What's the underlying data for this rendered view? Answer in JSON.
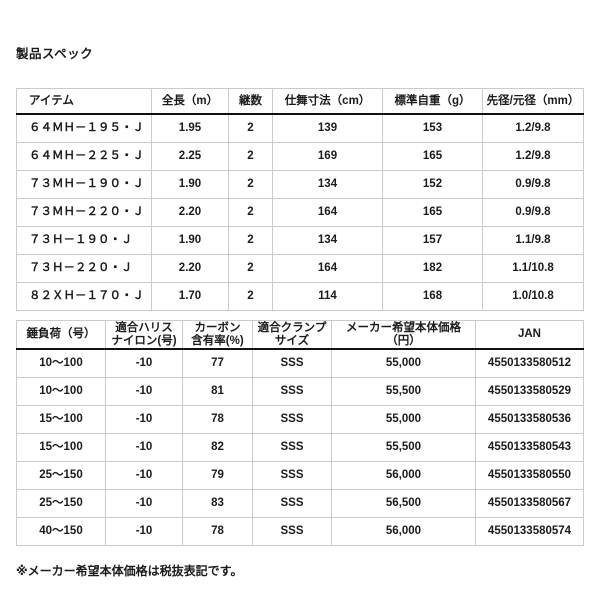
{
  "page": {
    "title": "製品スペック",
    "footnote": "※メーカー希望本体価格は税抜表記です。"
  },
  "colors": {
    "background": "#ffffff",
    "text": "#1b1b1b",
    "cell_border": "#cbcbcb",
    "header_rule": "#111111"
  },
  "spec_table": {
    "columns": [
      "アイテム",
      "全長（m）",
      "継数",
      "仕舞寸法（cm）",
      "標準自重（g）",
      "先径/元径（mm）"
    ],
    "rows": [
      [
        "６４ＭＨ－１９５・Ｊ",
        "1.95",
        "2",
        "139",
        "153",
        "1.2/9.8"
      ],
      [
        "６４ＭＨ－２２５・Ｊ",
        "2.25",
        "2",
        "169",
        "165",
        "1.2/9.8"
      ],
      [
        "７３ＭＨ－１９０・Ｊ",
        "1.90",
        "2",
        "134",
        "152",
        "0.9/9.8"
      ],
      [
        "７３ＭＨ－２２０・Ｊ",
        "2.20",
        "2",
        "164",
        "165",
        "0.9/9.8"
      ],
      [
        "７３Ｈ－１９０・Ｊ",
        "1.90",
        "2",
        "134",
        "157",
        "1.1/9.8"
      ],
      [
        "７３Ｈ－２２０・Ｊ",
        "2.20",
        "2",
        "164",
        "182",
        "1.1/10.8"
      ],
      [
        "８２ＸＨ－１７０・Ｊ",
        "1.70",
        "2",
        "114",
        "168",
        "1.0/10.8"
      ]
    ]
  },
  "detail_table": {
    "columns": [
      "錘負荷（号）",
      "適合ハリス\nナイロン(号)",
      "カーボン\n含有率(%)",
      "適合クランプ\nサイズ",
      "メーカー希望本体価格（円）",
      "JAN"
    ],
    "rows": [
      [
        "10～100",
        "-10",
        "77",
        "SSS",
        "55,000",
        "4550133580512"
      ],
      [
        "10～100",
        "-10",
        "81",
        "SSS",
        "55,500",
        "4550133580529"
      ],
      [
        "15～100",
        "-10",
        "78",
        "SSS",
        "55,000",
        "4550133580536"
      ],
      [
        "15～100",
        "-10",
        "82",
        "SSS",
        "55,500",
        "4550133580543"
      ],
      [
        "25～150",
        "-10",
        "79",
        "SSS",
        "56,000",
        "4550133580550"
      ],
      [
        "25～150",
        "-10",
        "83",
        "SSS",
        "56,500",
        "4550133580567"
      ],
      [
        "40～150",
        "-10",
        "78",
        "SSS",
        "56,000",
        "4550133580574"
      ]
    ]
  }
}
